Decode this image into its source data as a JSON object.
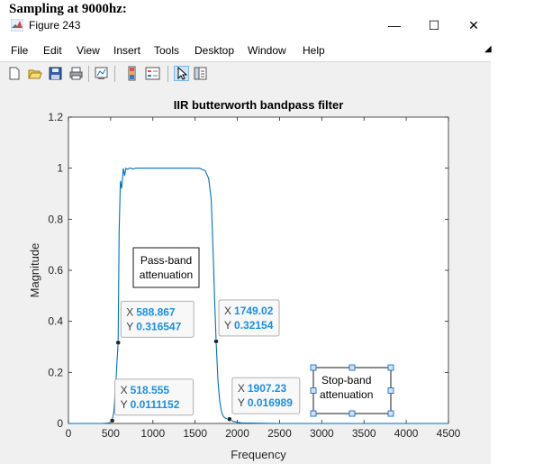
{
  "heading": "Sampling at 9000hz:",
  "window": {
    "title": "Figure 243",
    "controls": {
      "minimize": "—",
      "maximize": "☐",
      "close": "✕"
    }
  },
  "menu": [
    "File",
    "Edit",
    "View",
    "Insert",
    "Tools",
    "Desktop",
    "Window",
    "Help"
  ],
  "toolbar": [
    "new-figure-icon",
    "open-file-icon",
    "save-icon",
    "print-icon",
    "link-plot-icon",
    "insert-colorbar-icon",
    "insert-legend-icon",
    "edit-plot-icon",
    "property-inspector-icon"
  ],
  "chart_data": {
    "type": "line",
    "title": "IIR butterworth bandpass filter",
    "xlabel": "Frequency",
    "ylabel": "Magnitude",
    "xlim": [
      0,
      4500
    ],
    "ylim": [
      0,
      1.2
    ],
    "xticks": [
      "0",
      "500",
      "1000",
      "1500",
      "2000",
      "2500",
      "3000",
      "3500",
      "4000",
      "4500"
    ],
    "yticks": [
      "0",
      "0.2",
      "0.4",
      "0.6",
      "0.8",
      "1",
      "1.2"
    ],
    "line_color": "#0072bd",
    "series": [
      {
        "x": [
          0,
          400,
          480,
          518,
          540,
          560,
          575,
          588.867,
          600,
          615,
          630,
          650,
          665,
          680,
          700,
          720,
          740,
          760,
          800,
          1000,
          1200,
          1400,
          1550,
          1620,
          1660,
          1690,
          1710,
          1730,
          1749.02,
          1770,
          1790,
          1810,
          1830,
          1850,
          1870,
          1907.23,
          1950,
          2050,
          2500,
          3000,
          3500,
          4000,
          4500
        ],
        "y": [
          0,
          0,
          0.002,
          0.0111,
          0.05,
          0.15,
          0.24,
          0.3165,
          0.75,
          0.95,
          0.92,
          1.0,
          0.97,
          1.0,
          0.995,
          1.0,
          1.0,
          0.997,
          1.0,
          1.0,
          1.0,
          1.0,
          1.0,
          0.99,
          0.96,
          0.88,
          0.7,
          0.5,
          0.3215,
          0.17,
          0.09,
          0.05,
          0.03,
          0.022,
          0.019,
          0.017,
          0.008,
          0.002,
          0,
          0,
          0,
          0,
          0
        ]
      }
    ],
    "datatips": [
      {
        "x": 588.867,
        "y": 0.316547,
        "x_label": "X",
        "y_label": "Y",
        "x_text": "588.867",
        "y_text": "0.316547",
        "placement": "upper-right"
      },
      {
        "x": 1749.02,
        "y": 0.32154,
        "x_label": "X",
        "y_label": "Y",
        "x_text": "1749.02",
        "y_text": "0.32154",
        "placement": "upper-right"
      },
      {
        "x": 518.555,
        "y": 0.0111152,
        "x_label": "X",
        "y_label": "Y",
        "x_text": "518.555",
        "y_text": "0.0111152",
        "placement": "upper-right"
      },
      {
        "x": 1907.23,
        "y": 0.016989,
        "x_label": "X",
        "y_label": "Y",
        "x_text": "1907.23",
        "y_text": "0.016989",
        "placement": "upper-right"
      }
    ],
    "annotations": [
      {
        "lines": [
          "Pass-band",
          "attenuation"
        ],
        "selected": false
      },
      {
        "lines": [
          "Stop-band",
          "attenuation"
        ],
        "selected": true
      }
    ]
  }
}
